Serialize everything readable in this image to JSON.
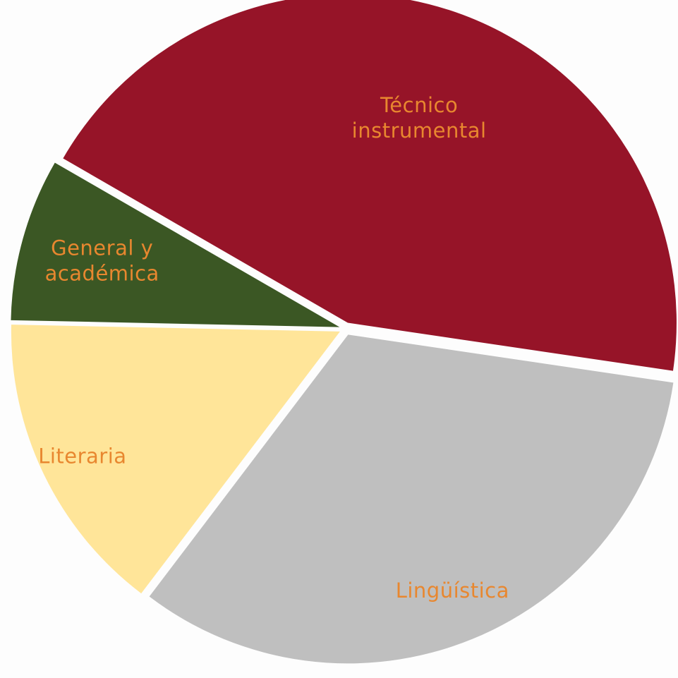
{
  "chart_data": {
    "type": "pie",
    "title": "",
    "label_color": "#E8872F",
    "slices": [
      {
        "key": "tecnico",
        "label": [
          "Técnico",
          "instrumental"
        ],
        "value": 44,
        "color": "#961428"
      },
      {
        "key": "linguistica",
        "label": [
          "Lingüística"
        ],
        "value": 33,
        "color": "#BFBFBF"
      },
      {
        "key": "literaria",
        "label": [
          "Literaria"
        ],
        "value": 15,
        "color": "#FFE599"
      },
      {
        "key": "general",
        "label": [
          "General y",
          "académica"
        ],
        "value": 8,
        "color": "#3B5724"
      }
    ]
  }
}
